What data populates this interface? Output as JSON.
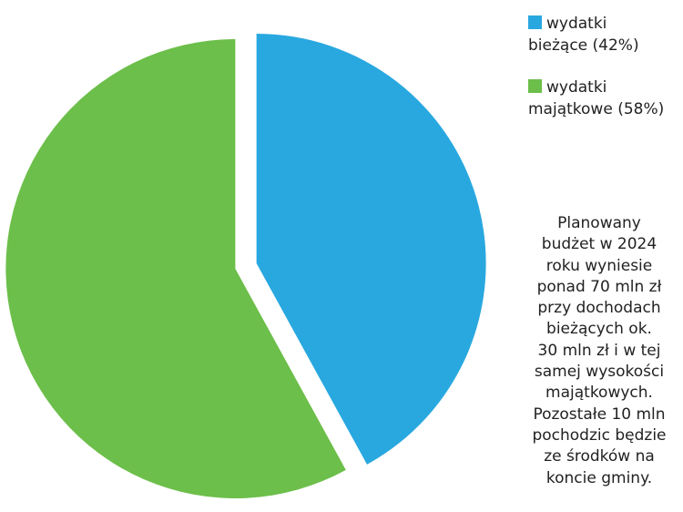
{
  "chart_data": {
    "type": "pie",
    "categories": [
      "wydatki bieżące (42%)",
      "wydatki majątkowe (58%)"
    ],
    "values": [
      42,
      58
    ],
    "colors": [
      "#29a8e0",
      "#6cbf4a"
    ],
    "title": "",
    "xlabel": "",
    "ylabel": "",
    "legend_position": "right",
    "exploded": true
  },
  "legend": {
    "items": [
      {
        "line1": "wydatki",
        "line2": "bieżące (42%)",
        "color": "#29a8e0"
      },
      {
        "line1": "wydatki",
        "line2": "majątkowe (58%)",
        "color": "#6cbf4a"
      }
    ]
  },
  "note": {
    "lines": [
      "Planowany",
      "budżet w 2024",
      "roku wyniesie",
      "ponad 70 mln zł",
      "przy dochodach",
      "bieżących ok.",
      "30 mln zł i w tej",
      "samej wysokości",
      "majątkowych.",
      "Pozostałe 10 mln",
      "pochodzic będzie",
      "ze środków na",
      "koncie gminy."
    ]
  }
}
